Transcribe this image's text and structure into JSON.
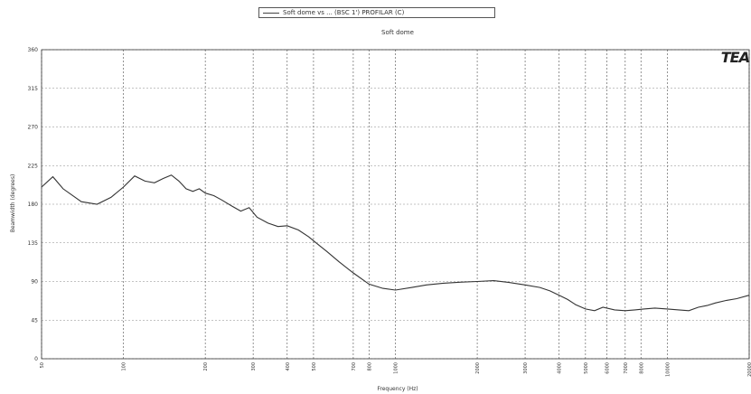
{
  "page_header": "",
  "legend": {
    "swatch_color": "#444444",
    "label": "Soft dome vs ... (BSC 1') PROFILAR (C)"
  },
  "logo": {
    "text": "TEA"
  },
  "chart_data": {
    "type": "line",
    "title": "Soft dome",
    "xlabel": "Frequency (Hz)",
    "ylabel": "Beamwidth (degrees)",
    "x_scale": "log",
    "xlim": [
      50,
      20000
    ],
    "ylim": [
      0,
      360
    ],
    "yticks": [
      0,
      45,
      90,
      135,
      180,
      225,
      270,
      315,
      360
    ],
    "ytick_labels": [
      "0",
      "45",
      "90",
      "135",
      "180",
      "225",
      "270",
      "315",
      "360"
    ],
    "xticks": [
      50,
      100,
      200,
      300,
      400,
      500,
      700,
      800,
      1000,
      2000,
      3000,
      4000,
      5000,
      6000,
      7000,
      8000,
      10000,
      20000
    ],
    "xtick_labels": [
      "50",
      "100",
      "200",
      "300",
      "400",
      "500",
      "700",
      "800",
      "1000",
      "2000",
      "3000",
      "4000",
      "5000",
      "6000",
      "7000",
      "8000",
      "10000",
      "20000"
    ],
    "grid": true,
    "series": [
      {
        "name": "Soft dome vs ... (BSC 1') PROFILAR (C)",
        "color": "#333333",
        "x": [
          50,
          55,
          60,
          70,
          80,
          90,
          100,
          110,
          120,
          130,
          140,
          150,
          160,
          170,
          180,
          190,
          200,
          215,
          230,
          250,
          270,
          290,
          310,
          340,
          370,
          400,
          440,
          480,
          520,
          560,
          620,
          700,
          800,
          900,
          1000,
          1150,
          1300,
          1500,
          1700,
          2000,
          2300,
          2600,
          3000,
          3400,
          3700,
          4000,
          4300,
          4600,
          5000,
          5400,
          5800,
          6400,
          7000,
          7600,
          8200,
          9000,
          10000,
          11000,
          12000,
          13000,
          14000,
          15000,
          16500,
          18000,
          20000
        ],
        "y": [
          200,
          212,
          198,
          183,
          180,
          188,
          200,
          213,
          207,
          205,
          210,
          214,
          207,
          198,
          195,
          198,
          193,
          190,
          185,
          178,
          172,
          176,
          165,
          158,
          154,
          155,
          150,
          142,
          133,
          125,
          113,
          100,
          87,
          82,
          80,
          83,
          86,
          88,
          89,
          90,
          91,
          89,
          86,
          83,
          79,
          74,
          69,
          63,
          58,
          56,
          60,
          57,
          56,
          57,
          58,
          59,
          58,
          57,
          56,
          60,
          62,
          65,
          68,
          70,
          74
        ]
      }
    ]
  }
}
